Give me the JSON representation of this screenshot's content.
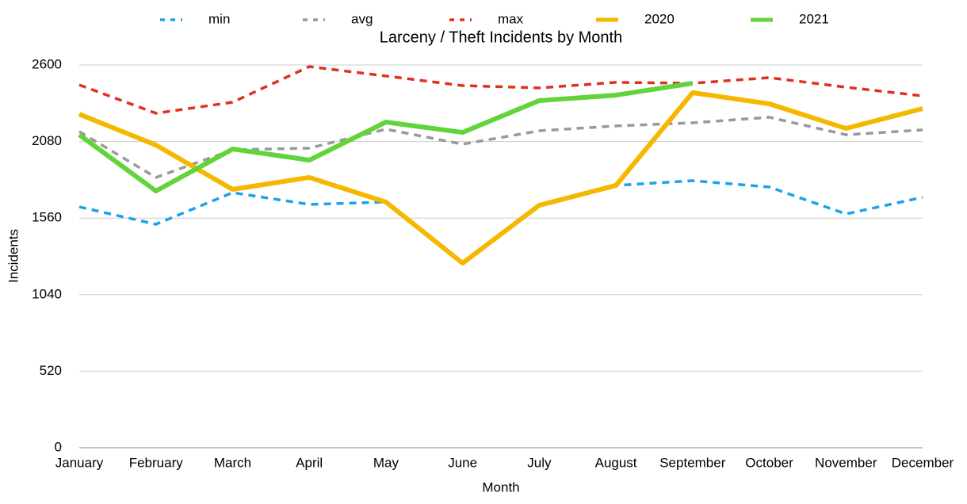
{
  "chart_data": {
    "type": "line",
    "title": "Larceny / Theft Incidents by Month",
    "x_label": "Month",
    "y_label": "Incidents",
    "categories": [
      "January",
      "February",
      "March",
      "April",
      "May",
      "June",
      "July",
      "August",
      "September",
      "October",
      "November",
      "December"
    ],
    "series": [
      {
        "name": "min",
        "color": "#1aa3e8",
        "dashed": true,
        "values": [
          1636,
          1518,
          1733,
          1653,
          1669,
          1260,
          1642,
          1782,
          1814,
          1771,
          1588,
          1701
        ]
      },
      {
        "name": "avg",
        "color": "#999999",
        "dashed": true,
        "values": [
          2148,
          1836,
          2024,
          2035,
          2164,
          2062,
          2153,
          2186,
          2207,
          2245,
          2126,
          2159
        ]
      },
      {
        "name": "max",
        "color": "#e0301e",
        "dashed": true,
        "values": [
          2465,
          2272,
          2347,
          2589,
          2525,
          2460,
          2444,
          2482,
          2476,
          2514,
          2449,
          2390
        ]
      },
      {
        "name": "2020",
        "color": "#f5b800",
        "dashed": false,
        "values": [
          2266,
          2056,
          1755,
          1836,
          1669,
          1254,
          1647,
          1782,
          2412,
          2336,
          2169,
          2304
        ]
      },
      {
        "name": "2021",
        "color": "#62d43a",
        "dashed": false,
        "values": [
          2126,
          1744,
          2029,
          1954,
          2212,
          2142,
          2358,
          2395,
          2476,
          null,
          null,
          null
        ]
      }
    ],
    "ylim": [
      0,
      2600
    ],
    "yticks": [
      0,
      520,
      1040,
      1560,
      2080,
      2600
    ],
    "grid": true,
    "legend": "top"
  }
}
